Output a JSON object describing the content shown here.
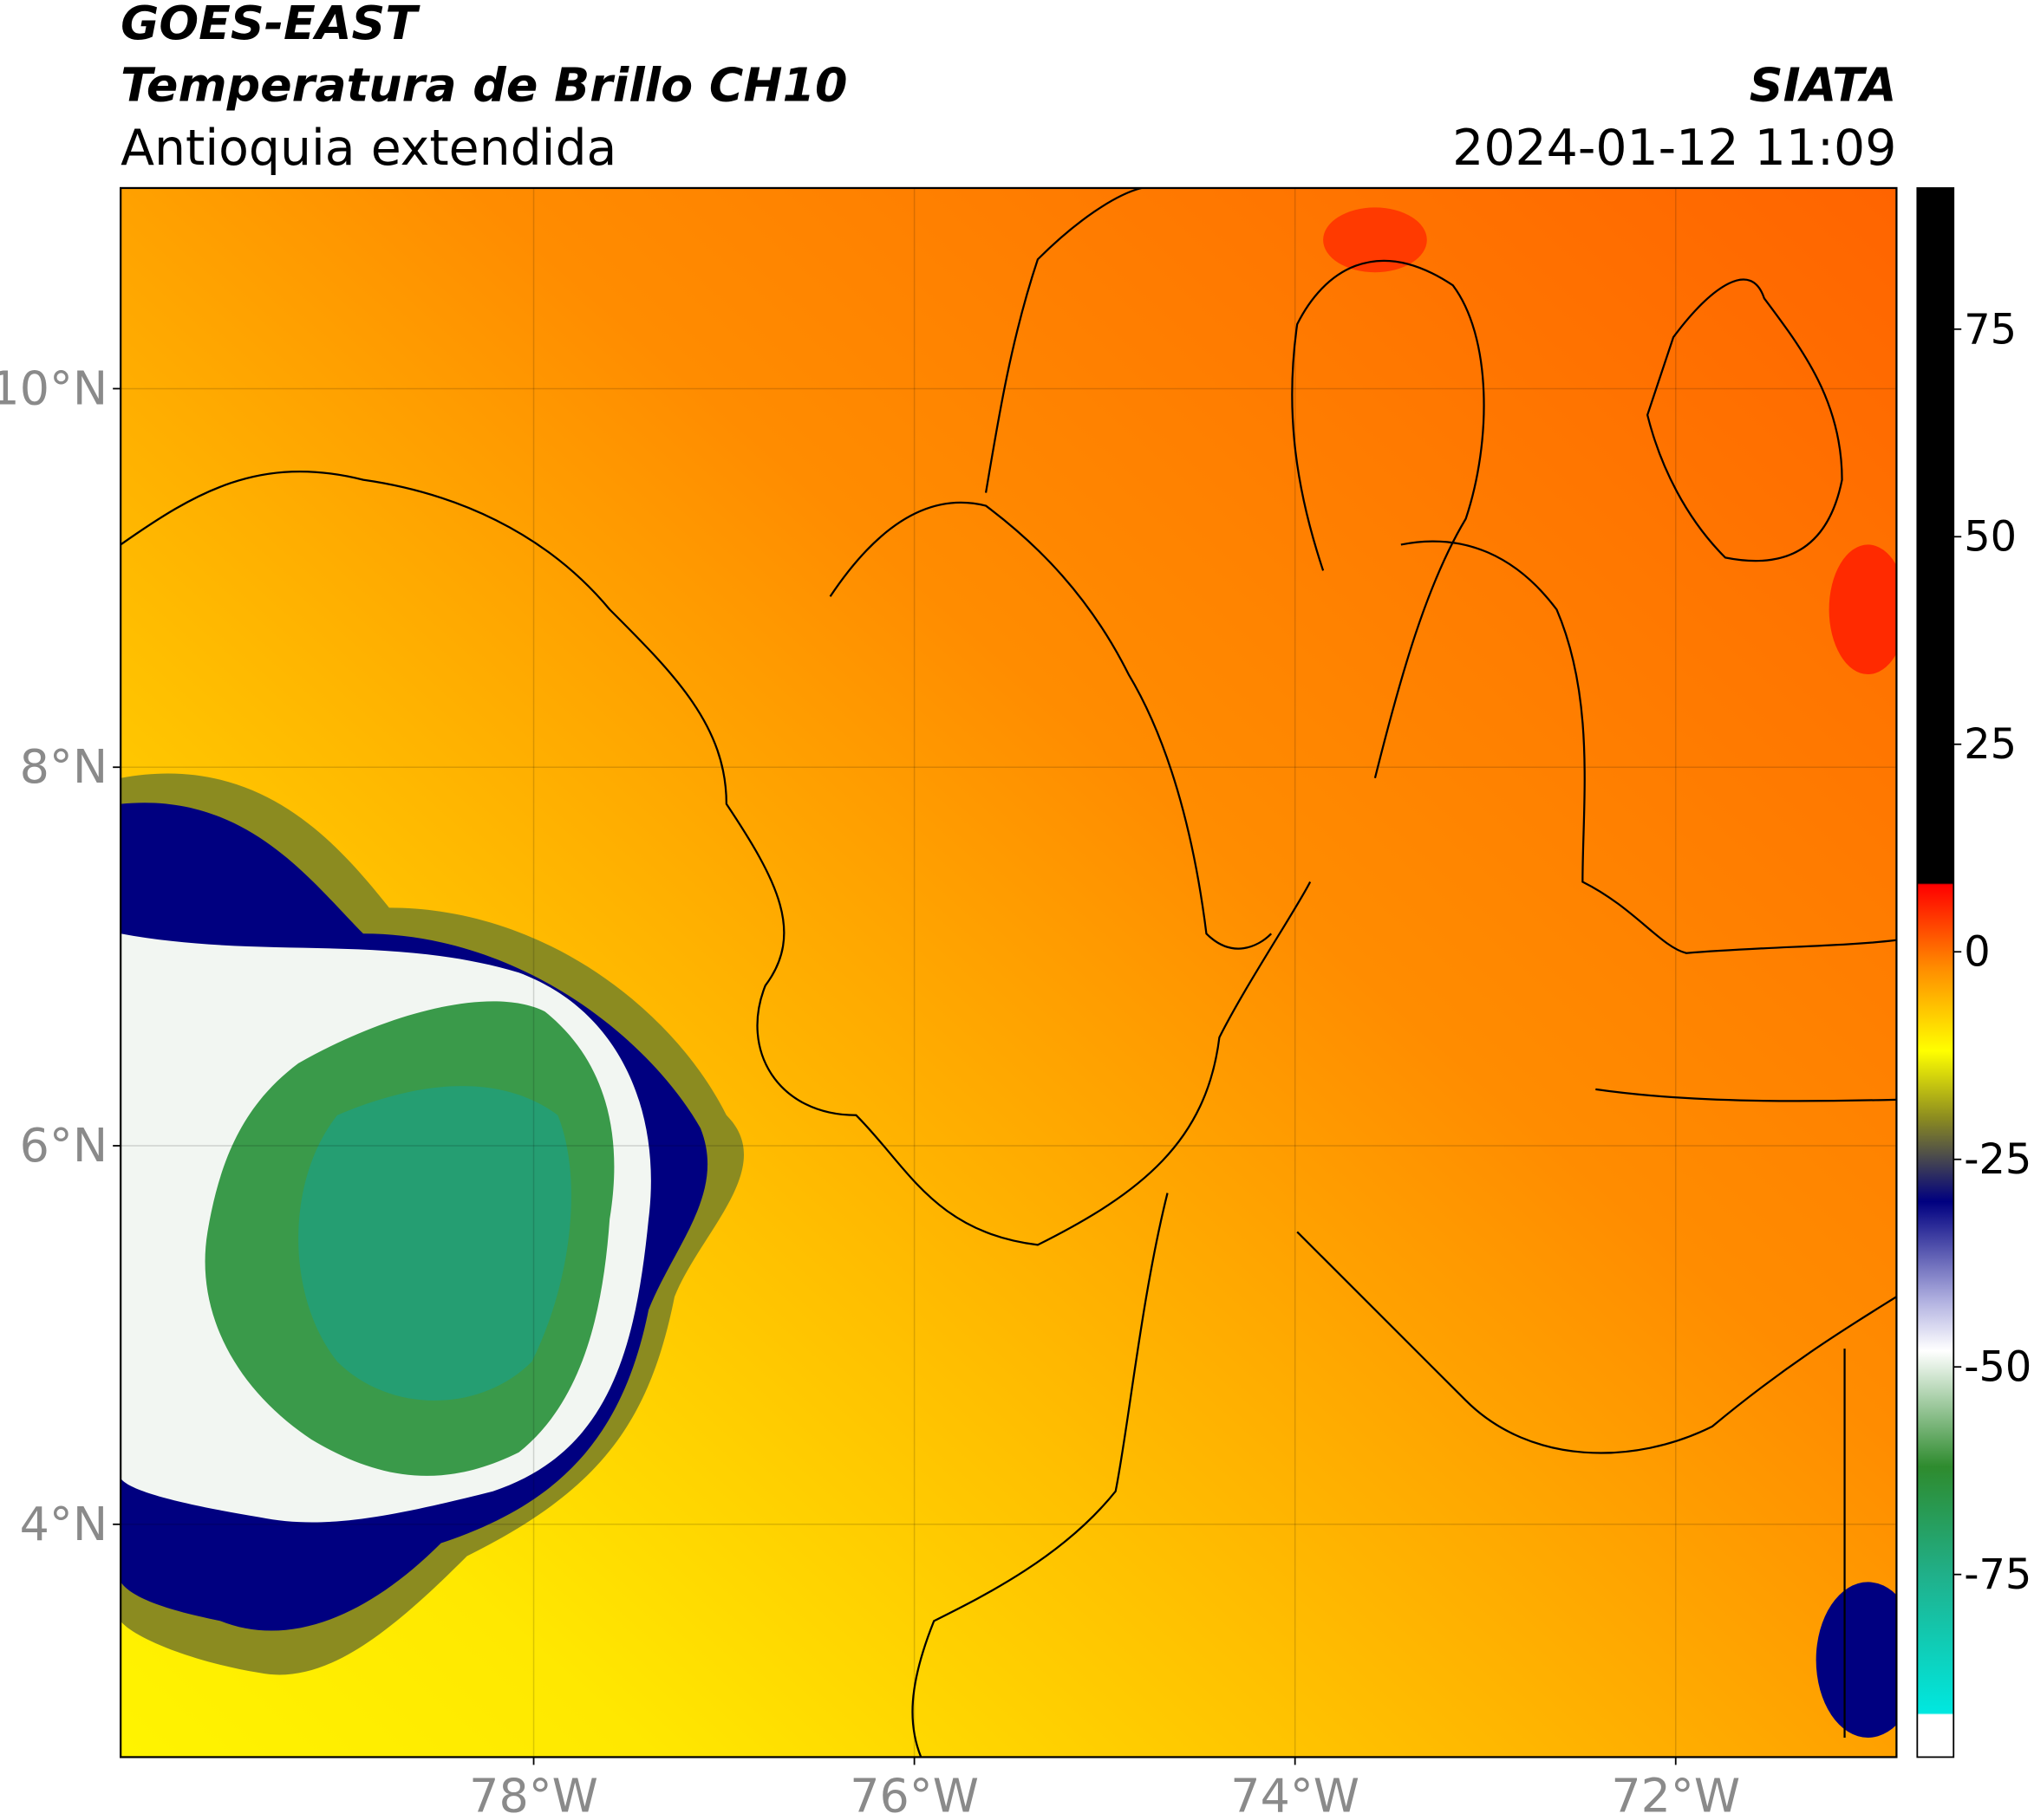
{
  "header": {
    "title_line1": "GOES-EAST",
    "title_line2": "Temperatura de Brillo CH10",
    "subtitle": "Antioquia extendida",
    "source": "SIATA",
    "datetime": "2024-01-12 11:09"
  },
  "map": {
    "xlim": [
      -80.17,
      -70.84
    ],
    "ylim": [
      2.77,
      11.06
    ],
    "xticks": [
      {
        "value": -78,
        "label": "78°W"
      },
      {
        "value": -76,
        "label": "76°W"
      },
      {
        "value": -74,
        "label": "74°W"
      },
      {
        "value": -72,
        "label": "72°W"
      }
    ],
    "yticks": [
      {
        "value": 4,
        "label": "4°N"
      },
      {
        "value": 6,
        "label": "6°N"
      },
      {
        "value": 8,
        "label": "8°N"
      },
      {
        "value": 10,
        "label": "10°N"
      }
    ],
    "grid": true
  },
  "colorbar": {
    "lim": [
      -97,
      92
    ],
    "ticks": [
      -75,
      -50,
      -25,
      0,
      25,
      50,
      75
    ]
  }
}
